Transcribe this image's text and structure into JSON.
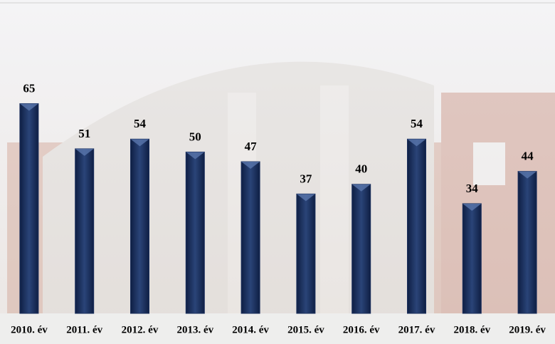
{
  "chart_data": {
    "type": "bar",
    "categories": [
      "2010. év",
      "2011. év",
      "2012. év",
      "2013. év",
      "2014. év",
      "2015. év",
      "2016. év",
      "2017. év",
      "2018. év",
      "2019. év"
    ],
    "values": [
      65,
      51,
      54,
      50,
      47,
      37,
      40,
      54,
      34,
      44
    ],
    "color": "#1b2f5c",
    "ylim": [
      0,
      96
    ]
  }
}
